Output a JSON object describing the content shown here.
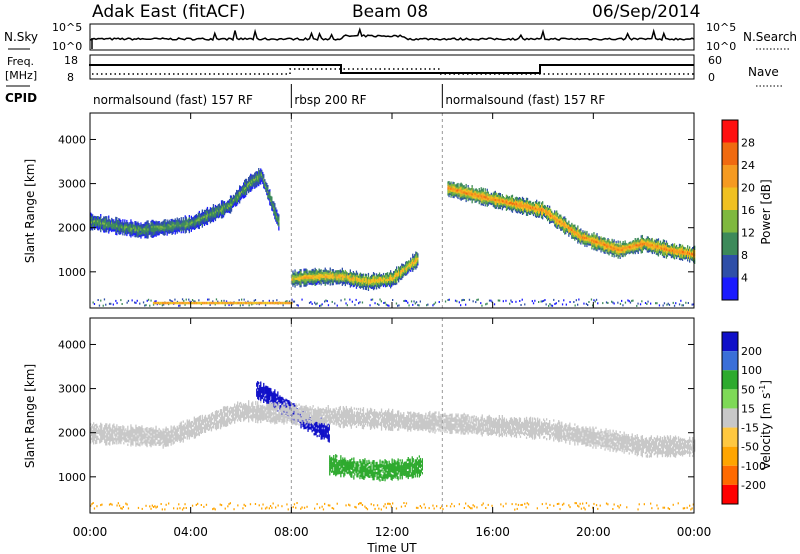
{
  "header": {
    "station": "Adak East (fitACF)",
    "beam": "Beam 08",
    "date": "06/Sep/2014"
  },
  "panel_labels": {
    "nsky": "N.Sky",
    "nsearch": "N.Search",
    "freq_line1": "Freq.",
    "freq_line2": "[MHz]",
    "nave": "Nave",
    "cpid": "CPID"
  },
  "top_ticks": {
    "nsky_left": [
      "10^5",
      "10^0"
    ],
    "nsky_right": [
      "10^5",
      "10^0"
    ],
    "freq_left": [
      "18",
      "8"
    ],
    "nave_right": [
      "60",
      "0"
    ]
  },
  "cpid_segments": [
    {
      "label": "normalsound (fast) 157 RF",
      "start": 0,
      "end": 8
    },
    {
      "label": "rbsp 200 RF",
      "start": 8,
      "end": 14
    },
    {
      "label": "normalsound (fast) 157 RF",
      "start": 14,
      "end": 24
    }
  ],
  "colors": {
    "power_scale": [
      "#1a1aff",
      "#2f4fa8",
      "#3d8a5a",
      "#7fb83f",
      "#f0c020",
      "#f59a20",
      "#f06a10",
      "#ff1010"
    ],
    "velocity_scale": [
      "#ff0000",
      "#ff6a00",
      "#ffa500",
      "#ffc840",
      "#c8c8c8",
      "#7ed957",
      "#2eaa2e",
      "#3a6fd8",
      "#1010c8"
    ]
  },
  "chart_data": [
    {
      "type": "heatmap",
      "name": "power",
      "xlabel": "Time UT",
      "ylabel": "Slant Range [km]",
      "x_ticks": [
        "00:00",
        "04:00",
        "08:00",
        "12:00",
        "16:00",
        "20:00",
        "00:00"
      ],
      "xlim": [
        0,
        24
      ],
      "ylim": [
        180,
        4600
      ],
      "y_ticks": [
        1000,
        2000,
        3000,
        4000
      ],
      "colorbar": {
        "label": "Power [dB]",
        "ticks": [
          4,
          8,
          12,
          16,
          20,
          24,
          28
        ],
        "range": [
          0,
          32
        ]
      },
      "features": [
        {
          "t": [
            0,
            2,
            4,
            5.5,
            6.3,
            6.8,
            7.5
          ],
          "range": [
            2150,
            1950,
            2100,
            2500,
            3000,
            3200,
            2100
          ],
          "level": 12
        },
        {
          "t": [
            14.2,
            16,
            18,
            19.5,
            21,
            22,
            23,
            24
          ],
          "range": [
            2900,
            2650,
            2400,
            1800,
            1500,
            1650,
            1500,
            1400
          ],
          "level": 24
        },
        {
          "t": [
            8,
            9,
            10,
            11,
            12,
            13
          ],
          "range": [
            850,
            900,
            900,
            780,
            850,
            1300
          ],
          "level": 20
        }
      ]
    },
    {
      "type": "heatmap",
      "name": "velocity",
      "xlabel": "Time UT",
      "ylabel": "Slant Range [km]",
      "x_ticks": [
        "00:00",
        "04:00",
        "08:00",
        "12:00",
        "16:00",
        "20:00",
        "00:00"
      ],
      "xlim": [
        0,
        24
      ],
      "ylim": [
        180,
        4600
      ],
      "y_ticks": [
        1000,
        2000,
        3000,
        4000
      ],
      "colorbar": {
        "label": "Velocity [m s^-1]",
        "ticks": [
          200,
          100,
          50,
          15,
          -15,
          -50,
          -100,
          -200
        ],
        "range": [
          -250,
          250
        ]
      },
      "features": [
        {
          "t": [
            6.6,
            7.5,
            8.5,
            9.5
          ],
          "range": [
            3000,
            2700,
            2300,
            2000
          ],
          "velocity": 200
        },
        {
          "t": [
            9.5,
            10.5,
            11.5,
            12.5,
            13.2
          ],
          "range": [
            1300,
            1200,
            1150,
            1200,
            1250
          ],
          "velocity": 50
        },
        {
          "t": [
            0,
            3,
            6,
            18,
            22,
            24
          ],
          "range": [
            2000,
            1900,
            2500,
            2100,
            1700,
            1700
          ],
          "velocity": 0
        }
      ]
    }
  ]
}
